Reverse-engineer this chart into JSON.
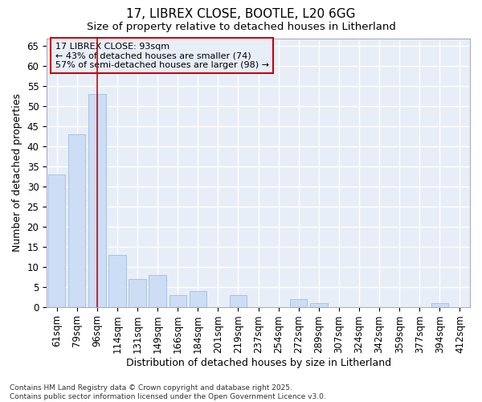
{
  "title1": "17, LIBREX CLOSE, BOOTLE, L20 6GG",
  "title2": "Size of property relative to detached houses in Litherland",
  "xlabel": "Distribution of detached houses by size in Litherland",
  "ylabel": "Number of detached properties",
  "categories": [
    "61sqm",
    "79sqm",
    "96sqm",
    "114sqm",
    "131sqm",
    "149sqm",
    "166sqm",
    "184sqm",
    "201sqm",
    "219sqm",
    "237sqm",
    "254sqm",
    "272sqm",
    "289sqm",
    "307sqm",
    "324sqm",
    "342sqm",
    "359sqm",
    "377sqm",
    "394sqm",
    "412sqm"
  ],
  "values": [
    33,
    43,
    53,
    13,
    7,
    8,
    3,
    4,
    0,
    3,
    0,
    0,
    2,
    1,
    0,
    0,
    0,
    0,
    0,
    1,
    0
  ],
  "bar_color": "#ccddf5",
  "bar_edgecolor": "#a0bede",
  "highlight_index": 2,
  "highlight_line_color": "#cc0000",
  "annotation_text": "17 LIBREX CLOSE: 93sqm\n← 43% of detached houses are smaller (74)\n57% of semi-detached houses are larger (98) →",
  "annotation_box_edgecolor": "#cc0000",
  "ylim": [
    0,
    67
  ],
  "yticks": [
    0,
    5,
    10,
    15,
    20,
    25,
    30,
    35,
    40,
    45,
    50,
    55,
    60,
    65
  ],
  "footer_text": "Contains HM Land Registry data © Crown copyright and database right 2025.\nContains public sector information licensed under the Open Government Licence v3.0.",
  "background_color": "#ffffff",
  "plot_bg_color": "#e8eef8",
  "grid_color": "#ffffff",
  "title_fontsize": 11,
  "subtitle_fontsize": 9.5,
  "axis_label_fontsize": 9,
  "tick_fontsize": 8.5,
  "annotation_fontsize": 8,
  "footer_fontsize": 6.5
}
